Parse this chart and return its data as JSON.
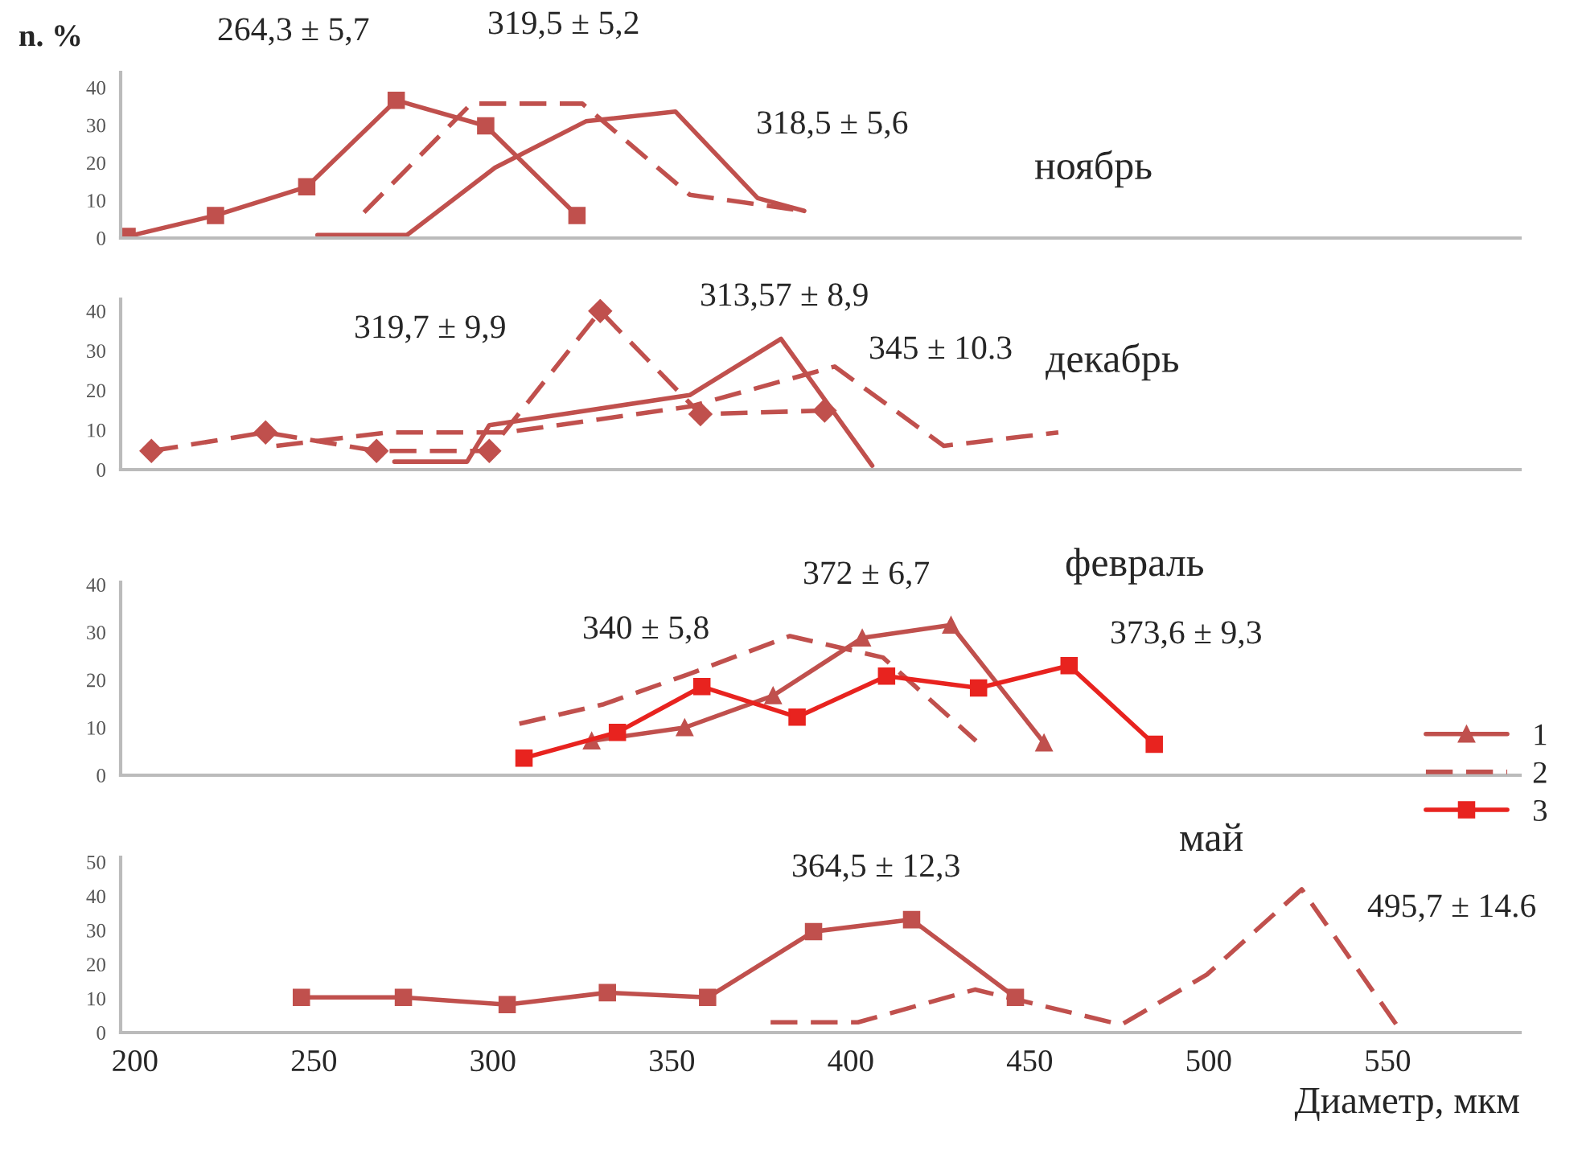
{
  "chart_data": [
    {
      "type": "line",
      "title": "ноябрь",
      "ylabel": "n. %",
      "xlim": [
        196,
        587
      ],
      "xticks": [
        200,
        250,
        300,
        350,
        400,
        450,
        500,
        550
      ],
      "ylim": [
        0,
        44
      ],
      "yticks": [
        0,
        10,
        20,
        30,
        40
      ],
      "tick_labels": "y",
      "grid": false,
      "legend": false,
      "annotations": [
        "264,3 ± 5,7",
        "319,5 ± 5,2",
        "318,5 ± 5,6"
      ],
      "series": [
        {
          "color": "#c0504d",
          "line_style": "solid",
          "marker": "none",
          "x": [
            251,
            276,
            300.6,
            326,
            351,
            374,
            387
          ],
          "values": [
            0.8,
            0.8,
            18.7,
            31,
            33.6,
            10.6,
            7.2
          ]
        },
        {
          "color": "#c0504d",
          "line_style": "dashed",
          "marker": "none",
          "x": [
            264,
            294,
            325,
            355,
            387
          ],
          "values": [
            6.8,
            35.7,
            35.7,
            11.5,
            7.2
          ]
        },
        {
          "color": "#c0504d",
          "line_style": "solid",
          "marker": "square",
          "x": [
            197.8,
            222.5,
            248,
            273,
            298,
            323.5
          ],
          "values": [
            0.4,
            6,
            13.6,
            36.6,
            29.8,
            6
          ]
        }
      ]
    },
    {
      "type": "line",
      "title": "декабрь",
      "xlim": [
        196,
        587
      ],
      "xticks": [
        200,
        250,
        300,
        350,
        400,
        450,
        500,
        550
      ],
      "ylim": [
        0,
        43
      ],
      "yticks": [
        0,
        10,
        20,
        30,
        40
      ],
      "tick_labels": "y",
      "grid": false,
      "legend": false,
      "annotations": [
        "319,7 ± 9,9",
        "313,57 ± 8,9",
        "345 ± 10.3"
      ],
      "series": [
        {
          "color": "#c0504d",
          "line_style": "solid",
          "marker": "none",
          "x": [
            272.5,
            292.8,
            299,
            355,
            380.5,
            406
          ],
          "values": [
            2,
            2,
            11.2,
            18.8,
            33,
            1
          ]
        },
        {
          "color": "#c0504d",
          "line_style": "dashed",
          "marker": "none",
          "x": [
            239.5,
            271,
            303.8,
            355,
            395.5,
            426,
            458
          ],
          "values": [
            6,
            9.4,
            9.4,
            15.9,
            26,
            6,
            9.4
          ]
        },
        {
          "color": "#c0504d",
          "line_style": "dashed",
          "marker": "diamond",
          "x": [
            204.6,
            236.5,
            267.5,
            299,
            330,
            358,
            392.7
          ],
          "values": [
            4.7,
            9.4,
            4.7,
            4.7,
            40,
            14,
            14.9
          ]
        }
      ]
    },
    {
      "type": "line",
      "title": "февраль",
      "xlim": [
        196,
        587
      ],
      "xticks": [
        200,
        250,
        300,
        350,
        400,
        450,
        500,
        550
      ],
      "ylim": [
        0,
        40.5
      ],
      "yticks": [
        0,
        10,
        20,
        30,
        40
      ],
      "tick_labels": "y",
      "grid": false,
      "legend": "right",
      "annotations": [
        "340 ± 5,8",
        "372 ± 6,7",
        "373,6 ± 9,3"
      ],
      "series": [
        {
          "name": "1",
          "color": "#c0504d",
          "line_style": "solid",
          "marker": "triangle",
          "x": [
            327.6,
            353.6,
            378.3,
            403.2,
            428,
            454
          ],
          "values": [
            7.2,
            10,
            16.7,
            28.8,
            31.5,
            6.8
          ]
        },
        {
          "name": "2",
          "color": "#c0504d",
          "line_style": "dashed",
          "marker": "none",
          "x": [
            307.4,
            331,
            354.7,
            383,
            409,
            435
          ],
          "values": [
            10.8,
            14.9,
            21.2,
            29.2,
            24.7,
            7.2
          ]
        },
        {
          "name": "3",
          "color": "#e8231f",
          "line_style": "solid",
          "marker": "square",
          "x": [
            308.7,
            334.8,
            358.4,
            385,
            410,
            435.7,
            461,
            484.8
          ],
          "values": [
            3.6,
            9,
            18.6,
            12.2,
            20.8,
            18.3,
            23,
            6.5
          ]
        }
      ]
    },
    {
      "type": "line",
      "title": "май",
      "xlabel": "Диаметр, мкм",
      "xlim": [
        196,
        587
      ],
      "ylim": [
        0,
        51.4
      ],
      "xticks": [
        200,
        250,
        300,
        350,
        400,
        450,
        500,
        550
      ],
      "yticks": [
        0,
        10,
        20,
        30,
        40,
        50
      ],
      "grid": false,
      "legend": false,
      "annotations": [
        "364,5 ± 12,3",
        "495,7 ± 14.6"
      ],
      "series": [
        {
          "color": "#c0504d",
          "line_style": "dashed",
          "marker": "none",
          "x": [
            377.6,
            402,
            434.7,
            475.6,
            499.5,
            526,
            554
          ],
          "values": [
            3,
            3,
            12.6,
            2.3,
            17,
            42,
            0
          ]
        },
        {
          "color": "#c0504d",
          "line_style": "solid",
          "marker": "square",
          "x": [
            246.5,
            275,
            304,
            332,
            360,
            389.6,
            417,
            446
          ],
          "values": [
            10.3,
            10.3,
            8.2,
            11.7,
            10.3,
            29.6,
            33.1,
            10.3
          ]
        }
      ]
    }
  ]
}
